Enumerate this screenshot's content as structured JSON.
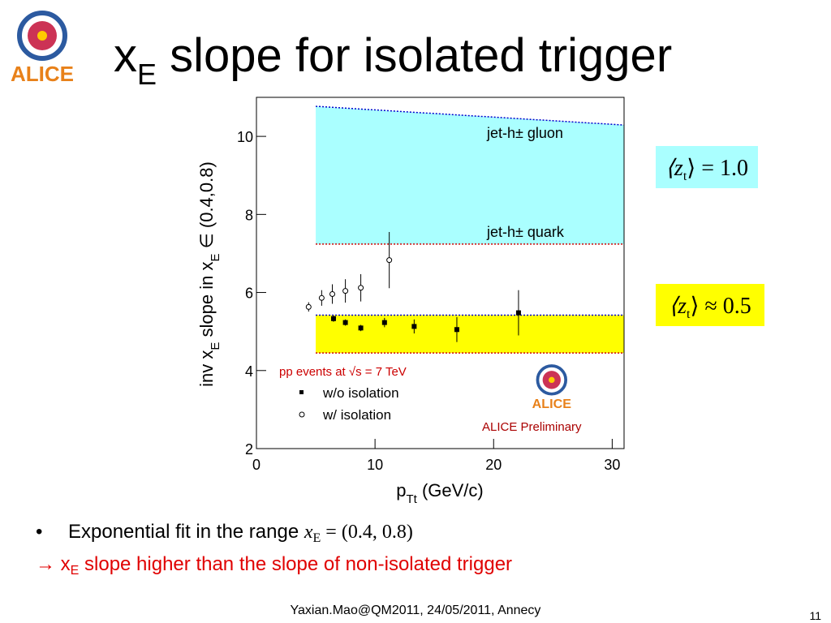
{
  "title": [
    "x",
    "E",
    " slope for isolated trigger"
  ],
  "logo_text": "ALICE",
  "zt_boxes": [
    [
      "⟨z",
      "t",
      "⟩ = 1.0"
    ],
    [
      "⟨z",
      "t",
      "⟩ ≈ 0.5"
    ]
  ],
  "bullets": [
    [
      "Exponential fit in the range ",
      "x",
      "E",
      " = (0.4, 0.8)"
    ],
    [
      "→ x",
      "E",
      " slope higher than the slope of non-isolated trigger"
    ]
  ],
  "footer": "Yaxian.Mao@QM2011, 24/05/2011, Annecy",
  "page_number": "11",
  "chart_data": {
    "type": "scatter",
    "y_label": [
      "inv x",
      "E",
      " slope in x",
      "E",
      " ∈ (0.4,0.8)"
    ],
    "x_label": [
      "p",
      "Tt",
      " (GeV/c)"
    ],
    "xlim": [
      0,
      31
    ],
    "ylim": [
      2,
      11
    ],
    "xticks": [
      0,
      10,
      20,
      30
    ],
    "yticks": [
      2,
      4,
      6,
      8,
      10
    ],
    "annotations": [
      "jet-h± gluon",
      "jet-h± quark",
      "pp events at √s = 7 TeV",
      "ALICE Preliminary"
    ],
    "bands": [
      {
        "color": "#aaffff",
        "x": [
          5,
          31
        ],
        "top": [
          10.77,
          10.29
        ],
        "bottom": [
          7.24,
          7.24
        ]
      },
      {
        "color": "#ffff00",
        "x": [
          5,
          31
        ],
        "top": [
          5.42,
          5.42
        ],
        "bottom": [
          4.45,
          4.45
        ]
      }
    ],
    "series": [
      {
        "name": "w/o isolation",
        "marker": "square",
        "color": "#000000",
        "x": [
          6.5,
          7.5,
          8.8,
          10.8,
          13.3,
          16.9,
          22.1
        ],
        "values": [
          5.33,
          5.23,
          5.09,
          5.23,
          5.13,
          5.05,
          5.48
        ],
        "errors": [
          0.08,
          0.08,
          0.08,
          0.12,
          0.18,
          0.32,
          0.58
        ]
      },
      {
        "name": "w/ isolation",
        "marker": "circle",
        "color": "#000000",
        "x": [
          4.4,
          5.5,
          6.4,
          7.5,
          8.8,
          11.2
        ],
        "values": [
          5.63,
          5.86,
          5.96,
          6.04,
          6.12,
          6.83
        ],
        "errors": [
          0.12,
          0.2,
          0.25,
          0.3,
          0.35,
          0.72
        ]
      }
    ]
  }
}
